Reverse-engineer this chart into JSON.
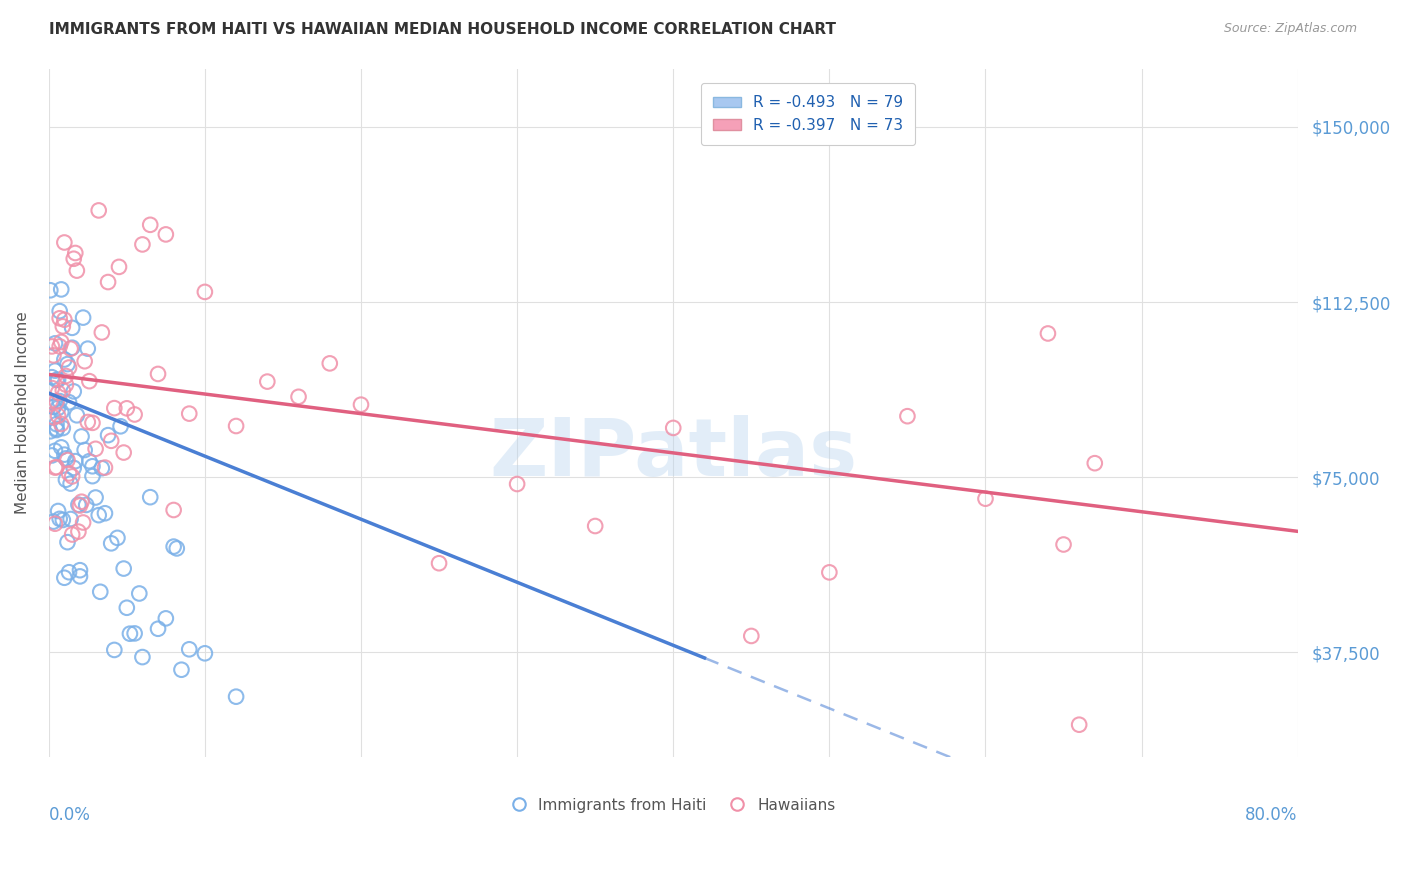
{
  "title": "IMMIGRANTS FROM HAITI VS HAWAIIAN MEDIAN HOUSEHOLD INCOME CORRELATION CHART",
  "source": "Source: ZipAtlas.com",
  "ylabel": "Median Household Income",
  "ytick_labels": [
    "$37,500",
    "$75,000",
    "$112,500",
    "$150,000"
  ],
  "ytick_values": [
    37500,
    75000,
    112500,
    150000
  ],
  "ymin": 15000,
  "ymax": 162500,
  "xmin": 0.0,
  "xmax": 0.8,
  "legend_bottom": [
    "Immigrants from Haiti",
    "Hawaiians"
  ],
  "color_haiti": "#7ab0e8",
  "color_hawaiians": "#f090a8",
  "trendline_haiti": "#4a7fd4",
  "trendline_hawaiians": "#e06080",
  "watermark": "ZIPatlas",
  "legend_box_blue": "#a8c8f0",
  "legend_box_pink": "#f5a0b8",
  "legend_text_color": "#2060b0",
  "source_color": "#999999",
  "title_color": "#333333",
  "grid_color": "#e0e0e0",
  "tick_color": "#5b9bd5",
  "ylabel_color": "#555555"
}
